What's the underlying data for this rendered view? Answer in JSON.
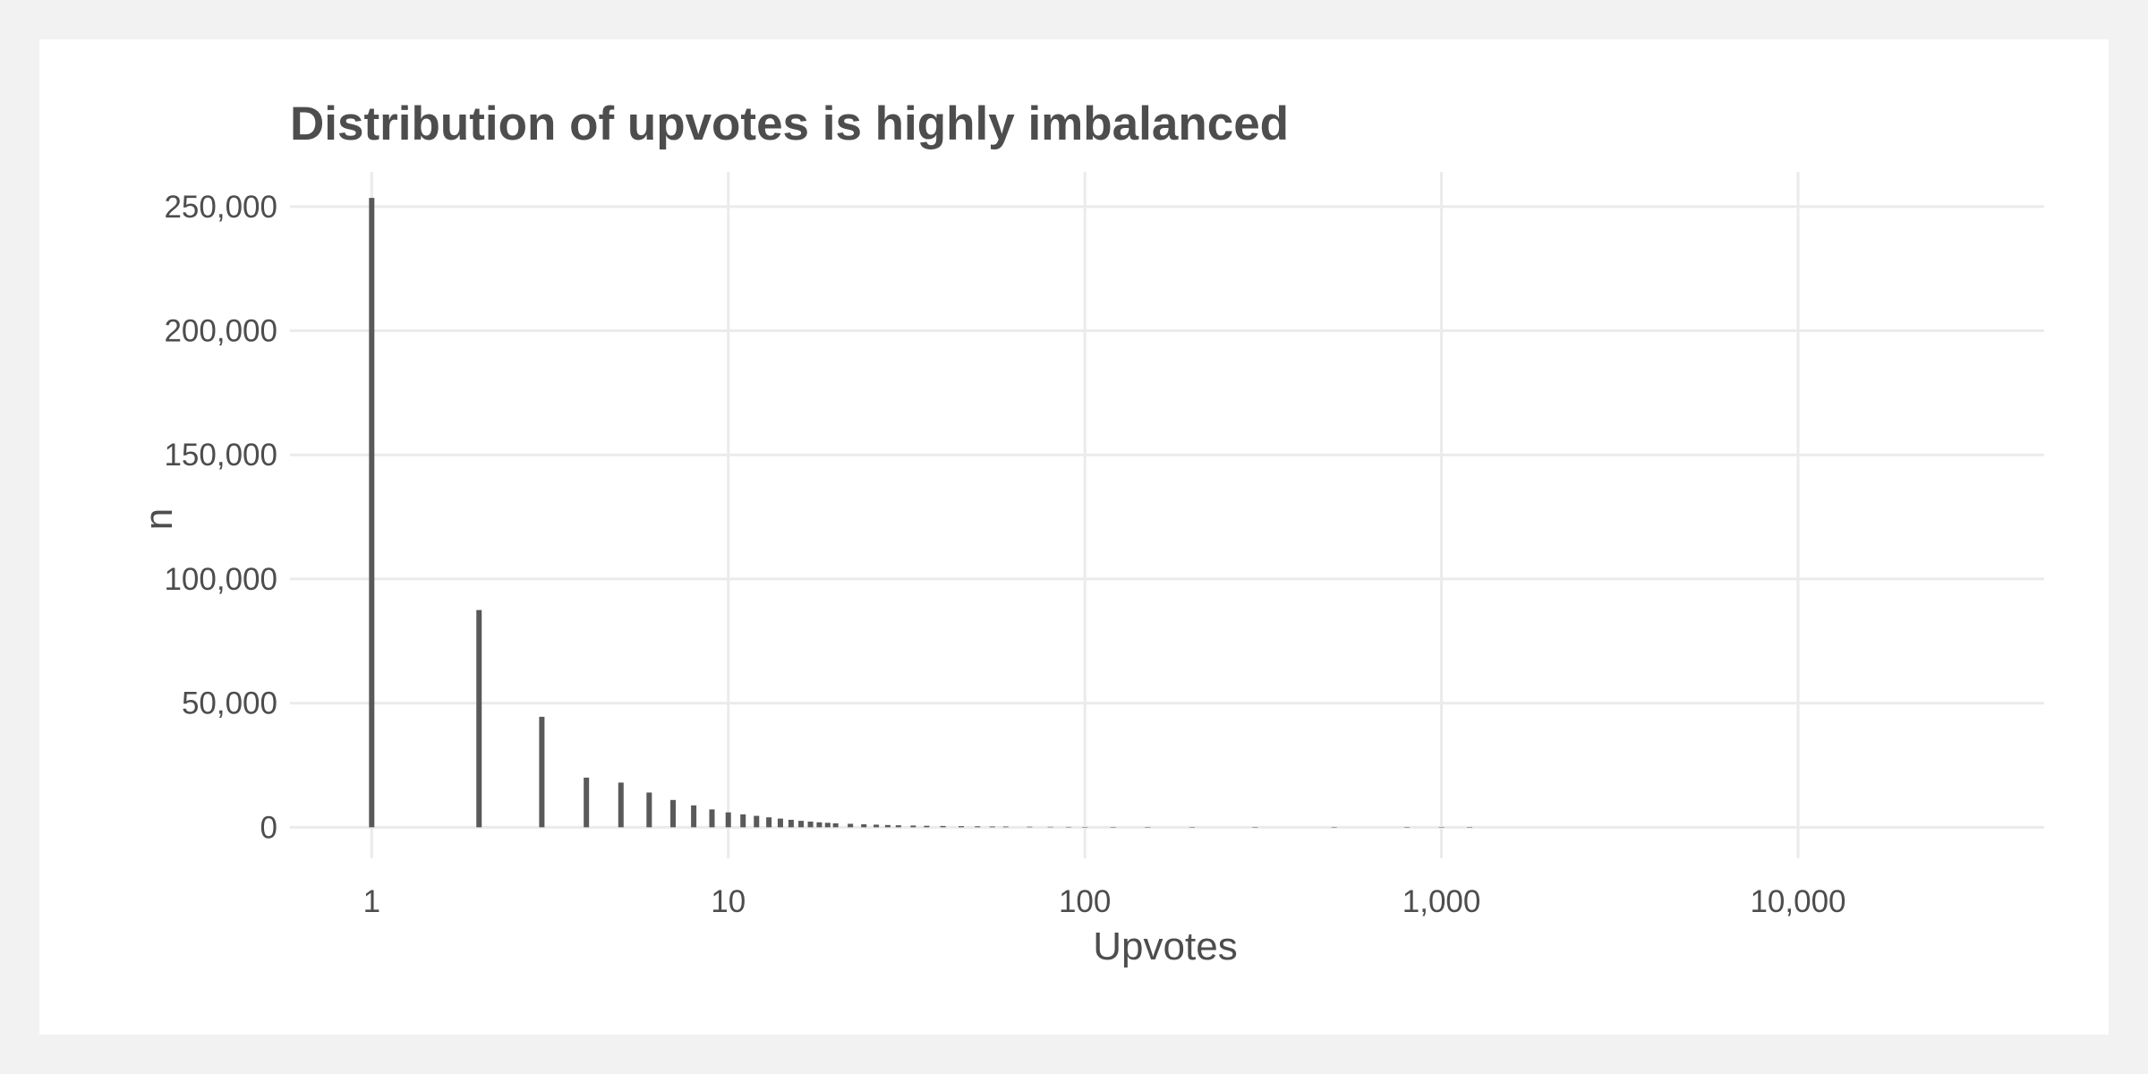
{
  "chart_data": {
    "type": "bar",
    "title": "Distribution of upvotes is highly imbalanced",
    "xlabel": "Upvotes",
    "ylabel": "n",
    "x_scale": "log10",
    "xlim": [
      0.59,
      49000
    ],
    "ylim": [
      -12500,
      264000
    ],
    "x_ticks": [
      1,
      10,
      100,
      1000,
      10000
    ],
    "x_tick_labels": [
      "1",
      "10",
      "100",
      "1,000",
      "10,000"
    ],
    "y_ticks": [
      0,
      50000,
      100000,
      150000,
      200000,
      250000
    ],
    "y_tick_labels": [
      "0",
      "50,000",
      "100,000",
      "150,000",
      "200,000",
      "250,000"
    ],
    "grid": true,
    "bar_color": "#595959",
    "x": [
      1,
      2,
      3,
      4,
      5,
      6,
      7,
      8,
      9,
      10,
      11,
      12,
      13,
      14,
      15,
      16,
      17,
      18,
      19,
      20,
      22,
      24,
      26,
      28,
      30,
      33,
      36,
      40,
      45,
      50,
      55,
      60,
      70,
      80,
      90,
      100,
      120,
      150,
      200,
      300,
      500,
      800,
      1000,
      1200
    ],
    "values": [
      253500,
      87500,
      44500,
      20000,
      18000,
      14000,
      11000,
      8800,
      7200,
      6000,
      5200,
      4600,
      4000,
      3500,
      3000,
      2600,
      2300,
      2000,
      1800,
      1600,
      1400,
      1200,
      1050,
      900,
      800,
      700,
      600,
      520,
      450,
      380,
      320,
      280,
      220,
      180,
      150,
      120,
      90,
      70,
      50,
      30,
      20,
      12,
      9,
      7
    ]
  }
}
